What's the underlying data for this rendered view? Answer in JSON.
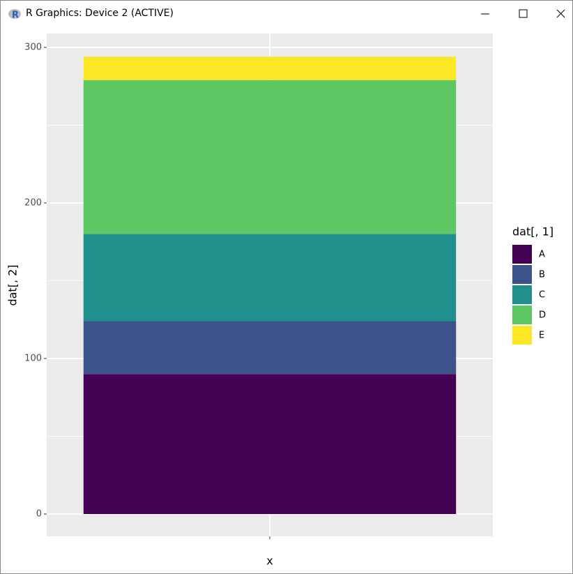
{
  "window": {
    "title": "R Graphics: Device 2 (ACTIVE)"
  },
  "chart_data": {
    "type": "stacked_bar",
    "x_label": "x",
    "y_label": "dat[, 2]",
    "legend_title": "dat[, 1]",
    "categories": [
      null
    ],
    "series": [
      {
        "name": "A",
        "color": "#440154",
        "values": [
          90
        ]
      },
      {
        "name": "B",
        "color": "#3B528B",
        "values": [
          34
        ]
      },
      {
        "name": "C",
        "color": "#21908C",
        "values": [
          56
        ]
      },
      {
        "name": "D",
        "color": "#5DC863",
        "values": [
          99
        ]
      },
      {
        "name": "E",
        "color": "#FDE725",
        "values": [
          15
        ]
      }
    ],
    "ylim": [
      -14.35,
      308.95
    ],
    "yticks": [
      0,
      100,
      200,
      300
    ],
    "minor_yticks": [
      50,
      150,
      250
    ],
    "grid": true,
    "legend": "right",
    "panel_color": "#EBEBEB"
  }
}
